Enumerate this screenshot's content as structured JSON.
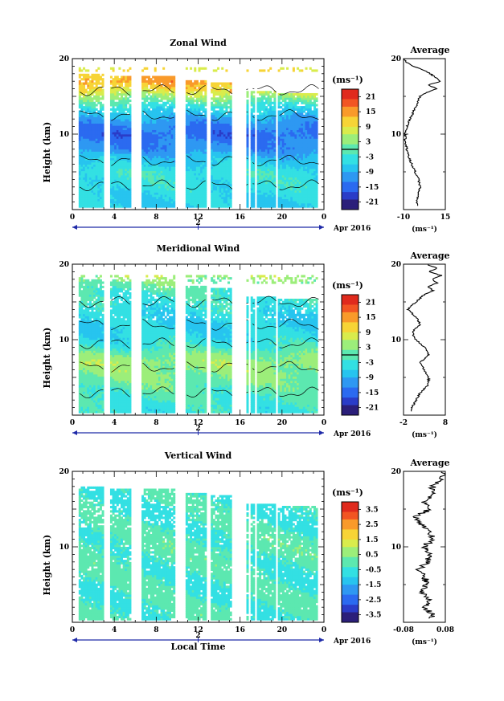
{
  "figure": {
    "date_label": "Apr 2016",
    "day_label": "2",
    "xlabel": "Local Time",
    "ylabel": "Height (km)",
    "average_title": "Average",
    "unit": "(ms⁻¹)",
    "x_ticks": [
      "0",
      "4",
      "8",
      "12",
      "16",
      "20",
      "0"
    ],
    "y_ticks": [
      "10",
      "20"
    ]
  },
  "colors": {
    "scale": [
      "#2b1f7a",
      "#2a3cc8",
      "#2b6af0",
      "#2e98f2",
      "#27c4ef",
      "#33e0e3",
      "#5ce8b0",
      "#9cee7a",
      "#d9ec4c",
      "#f7d436",
      "#f99a2a",
      "#f25523",
      "#e02a1d"
    ],
    "axis": "#000000",
    "timeline": "#1f2aa8"
  },
  "chart_data": [
    {
      "type": "heatmap",
      "title": "Zonal Wind",
      "xlabel": "",
      "ylabel": "Height (km)",
      "xlim": [
        0,
        24
      ],
      "ylim": [
        0,
        20
      ],
      "x_ticks": [
        "0",
        "4",
        "8",
        "12",
        "16",
        "20",
        "0"
      ],
      "y_ticks": [
        10,
        20
      ],
      "colorbar": {
        "label": "(ms⁻¹)",
        "ticks": [
          "21",
          "15",
          "9",
          "3",
          "-3",
          "-9",
          "-15",
          "-21"
        ],
        "min": -24,
        "max": 24
      },
      "profile_by_height": [
        {
          "h": 1,
          "v": -6
        },
        {
          "h": 3,
          "v": -4
        },
        {
          "h": 5,
          "v": -3
        },
        {
          "h": 7,
          "v": -8
        },
        {
          "h": 8,
          "v": -12
        },
        {
          "h": 9,
          "v": -13
        },
        {
          "h": 10,
          "v": -15
        },
        {
          "h": 11,
          "v": -13
        },
        {
          "h": 12,
          "v": -10
        },
        {
          "h": 13,
          "v": -6
        },
        {
          "h": 14,
          "v": -2
        },
        {
          "h": 15,
          "v": 4
        },
        {
          "h": 16,
          "v": 10
        },
        {
          "h": 17,
          "v": 14
        },
        {
          "h": 18,
          "v": 12
        },
        {
          "h": 19,
          "v": 8
        }
      ],
      "average": {
        "title": "Average",
        "xlim": [
          -10,
          15
        ],
        "x_ticks": [
          "-10",
          "15"
        ],
        "xlabel": "(ms⁻¹)",
        "heights": [
          1,
          2,
          3,
          4,
          5,
          6,
          7,
          8,
          9,
          10,
          11,
          12,
          13,
          14,
          15,
          15.5,
          16,
          16.5,
          17,
          18,
          18.5,
          19,
          19.5,
          20
        ],
        "values": [
          -2,
          -1,
          0,
          -1,
          -3,
          -5,
          -7,
          -8,
          -9,
          -9,
          -8,
          -6,
          -4,
          -2,
          0,
          4,
          10,
          5,
          12,
          6,
          2,
          -4,
          -8,
          -10
        ]
      }
    },
    {
      "type": "heatmap",
      "title": "Meridional Wind",
      "xlabel": "",
      "ylabel": "Height (km)",
      "xlim": [
        0,
        24
      ],
      "ylim": [
        0,
        20
      ],
      "x_ticks": [
        "0",
        "4",
        "8",
        "12",
        "16",
        "20",
        "0"
      ],
      "y_ticks": [
        10,
        20
      ],
      "colorbar": {
        "label": "(ms⁻¹)",
        "ticks": [
          "21",
          "15",
          "9",
          "3",
          "-3",
          "-9",
          "-15",
          "-21"
        ],
        "min": -24,
        "max": 24
      },
      "profile_by_height": [
        {
          "h": 1,
          "v": -3
        },
        {
          "h": 3,
          "v": -1
        },
        {
          "h": 5,
          "v": 2
        },
        {
          "h": 7,
          "v": 4
        },
        {
          "h": 8,
          "v": 2
        },
        {
          "h": 9,
          "v": -2
        },
        {
          "h": 10,
          "v": -4
        },
        {
          "h": 11,
          "v": -5
        },
        {
          "h": 12,
          "v": -6
        },
        {
          "h": 13,
          "v": -5
        },
        {
          "h": 14,
          "v": -4
        },
        {
          "h": 15,
          "v": -3
        },
        {
          "h": 16,
          "v": -2
        },
        {
          "h": 17,
          "v": 0
        },
        {
          "h": 18,
          "v": 3
        },
        {
          "h": 19,
          "v": 6
        }
      ],
      "average": {
        "title": "Average",
        "xlim": [
          -2,
          8
        ],
        "x_ticks": [
          "-2",
          "8"
        ],
        "xlabel": "(ms⁻¹)",
        "heights": [
          1,
          2,
          3,
          4,
          5,
          6,
          7,
          8,
          9,
          10,
          11,
          12,
          13,
          14,
          15,
          16,
          16.5,
          17,
          17.5,
          18,
          18.5,
          19,
          19.5,
          20
        ],
        "values": [
          0,
          1,
          2,
          4,
          4,
          3,
          2,
          4,
          3,
          1,
          0,
          2,
          1,
          -1,
          1,
          3,
          5,
          4,
          6,
          5,
          7,
          4,
          6,
          3
        ]
      }
    },
    {
      "type": "heatmap",
      "title": "Vertical Wind",
      "xlabel": "Local Time",
      "ylabel": "Height (km)",
      "xlim": [
        0,
        24
      ],
      "ylim": [
        0,
        20
      ],
      "x_ticks": [
        "0",
        "4",
        "8",
        "12",
        "16",
        "20",
        "0"
      ],
      "y_ticks": [
        10,
        20
      ],
      "colorbar": {
        "label": "(ms⁻¹)",
        "ticks": [
          "3.5",
          "2.5",
          "1.5",
          "0.5",
          "-0.5",
          "-1.5",
          "-2.5",
          "-3.5"
        ],
        "min": -4,
        "max": 4
      },
      "profile_by_height": [
        {
          "h": 1,
          "v": -0.2
        },
        {
          "h": 5,
          "v": -0.3
        },
        {
          "h": 10,
          "v": -0.1
        },
        {
          "h": 15,
          "v": -0.4
        },
        {
          "h": 19,
          "v": -0.2
        }
      ],
      "average": {
        "title": "Average",
        "xlim": [
          -0.08,
          0.08
        ],
        "x_ticks": [
          "-0.08",
          "0.08"
        ],
        "xlabel": "(ms⁻¹)",
        "heights": [
          1,
          2,
          3,
          4,
          5,
          6,
          7,
          8,
          9,
          10,
          11,
          12,
          13,
          14,
          15,
          16,
          17,
          18,
          19,
          20
        ],
        "values": [
          0.03,
          0.0,
          0.02,
          -0.01,
          0.01,
          0.0,
          -0.02,
          0.01,
          0.02,
          0.0,
          0.03,
          0.02,
          -0.01,
          -0.03,
          0.02,
          0.0,
          0.04,
          0.03,
          0.06,
          0.07
        ]
      }
    }
  ]
}
